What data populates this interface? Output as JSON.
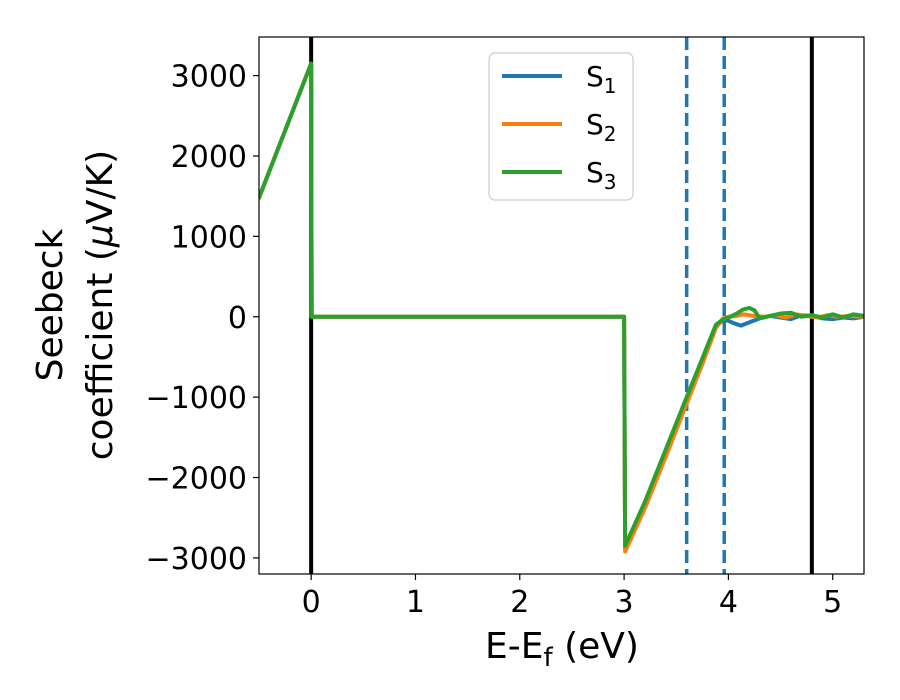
{
  "chart_data": {
    "type": "line",
    "xlabel": {
      "pre": "E-E",
      "sub": "f",
      "post": " (eV)"
    },
    "ylabel": {
      "line1": "Seebeck",
      "line2a": "coefficient  (",
      "mu": "μ",
      "line2b": "V/K)"
    },
    "xlim": [
      -0.5,
      5.3
    ],
    "ylim": [
      -3200,
      3480
    ],
    "xticks": [
      0,
      1,
      2,
      3,
      4,
      5
    ],
    "xtick_labels": [
      "0",
      "1",
      "2",
      "3",
      "4",
      "5"
    ],
    "yticks": [
      -3000,
      -2000,
      -1000,
      0,
      1000,
      2000,
      3000
    ],
    "ytick_labels": [
      "−3000",
      "−2000",
      "−1000",
      "0",
      "1000",
      "2000",
      "3000"
    ],
    "grid": false,
    "legend": "upper-center",
    "vlines": [
      {
        "x": 0,
        "style": "solid",
        "color": "#000000"
      },
      {
        "x": 4.8,
        "style": "solid",
        "color": "#000000"
      },
      {
        "x": 3.6,
        "style": "dashed",
        "color": "#1f77b4"
      },
      {
        "x": 3.96,
        "style": "dashed",
        "color": "#1f77b4"
      }
    ],
    "series": [
      {
        "name": {
          "base": "S",
          "sub": "1"
        },
        "color": "#1f77b4",
        "points": [
          [
            -0.5,
            1480
          ],
          [
            0,
            3150
          ],
          [
            0.005,
            0
          ],
          [
            1,
            0
          ],
          [
            2,
            0
          ],
          [
            3.0,
            0
          ],
          [
            3.01,
            -2880
          ],
          [
            3.2,
            -2350
          ],
          [
            3.4,
            -1700
          ],
          [
            3.6,
            -1050
          ],
          [
            3.75,
            -560
          ],
          [
            3.88,
            -120
          ],
          [
            3.95,
            -40
          ],
          [
            4.0,
            -50
          ],
          [
            4.05,
            -80
          ],
          [
            4.12,
            -110
          ],
          [
            4.2,
            -70
          ],
          [
            4.3,
            -20
          ],
          [
            4.4,
            10
          ],
          [
            4.5,
            -10
          ],
          [
            4.6,
            -30
          ],
          [
            4.7,
            20
          ],
          [
            4.8,
            10
          ],
          [
            4.9,
            -20
          ],
          [
            5.0,
            -30
          ],
          [
            5.1,
            -10
          ],
          [
            5.2,
            -20
          ],
          [
            5.3,
            0
          ]
        ]
      },
      {
        "name": {
          "base": "S",
          "sub": "2"
        },
        "color": "#ff7f0e",
        "points": [
          [
            -0.5,
            1480
          ],
          [
            0,
            3150
          ],
          [
            0.005,
            0
          ],
          [
            1,
            0
          ],
          [
            2,
            0
          ],
          [
            3.0,
            0
          ],
          [
            3.01,
            -2920
          ],
          [
            3.2,
            -2380
          ],
          [
            3.4,
            -1740
          ],
          [
            3.6,
            -1080
          ],
          [
            3.75,
            -590
          ],
          [
            3.88,
            -140
          ],
          [
            3.95,
            -20
          ],
          [
            4.0,
            0
          ],
          [
            4.08,
            10
          ],
          [
            4.15,
            30
          ],
          [
            4.25,
            10
          ],
          [
            4.35,
            0
          ],
          [
            4.45,
            20
          ],
          [
            4.55,
            -10
          ],
          [
            4.65,
            30
          ],
          [
            4.75,
            10
          ],
          [
            4.85,
            -10
          ],
          [
            4.95,
            20
          ],
          [
            5.05,
            0
          ],
          [
            5.15,
            10
          ],
          [
            5.3,
            0
          ]
        ]
      },
      {
        "name": {
          "base": "S",
          "sub": "3"
        },
        "color": "#2ca02c",
        "points": [
          [
            -0.5,
            1480
          ],
          [
            0,
            3150
          ],
          [
            0.005,
            0
          ],
          [
            1,
            0
          ],
          [
            2,
            0
          ],
          [
            3.0,
            0
          ],
          [
            3.01,
            -2850
          ],
          [
            3.2,
            -2300
          ],
          [
            3.4,
            -1650
          ],
          [
            3.6,
            -1000
          ],
          [
            3.75,
            -520
          ],
          [
            3.88,
            -100
          ],
          [
            3.95,
            -30
          ],
          [
            4.0,
            -10
          ],
          [
            4.08,
            40
          ],
          [
            4.14,
            90
          ],
          [
            4.2,
            110
          ],
          [
            4.25,
            80
          ],
          [
            4.3,
            -20
          ],
          [
            4.4,
            10
          ],
          [
            4.5,
            40
          ],
          [
            4.6,
            50
          ],
          [
            4.7,
            0
          ],
          [
            4.8,
            20
          ],
          [
            4.9,
            -10
          ],
          [
            5.0,
            30
          ],
          [
            5.1,
            -10
          ],
          [
            5.2,
            30
          ],
          [
            5.3,
            10
          ]
        ]
      }
    ]
  }
}
